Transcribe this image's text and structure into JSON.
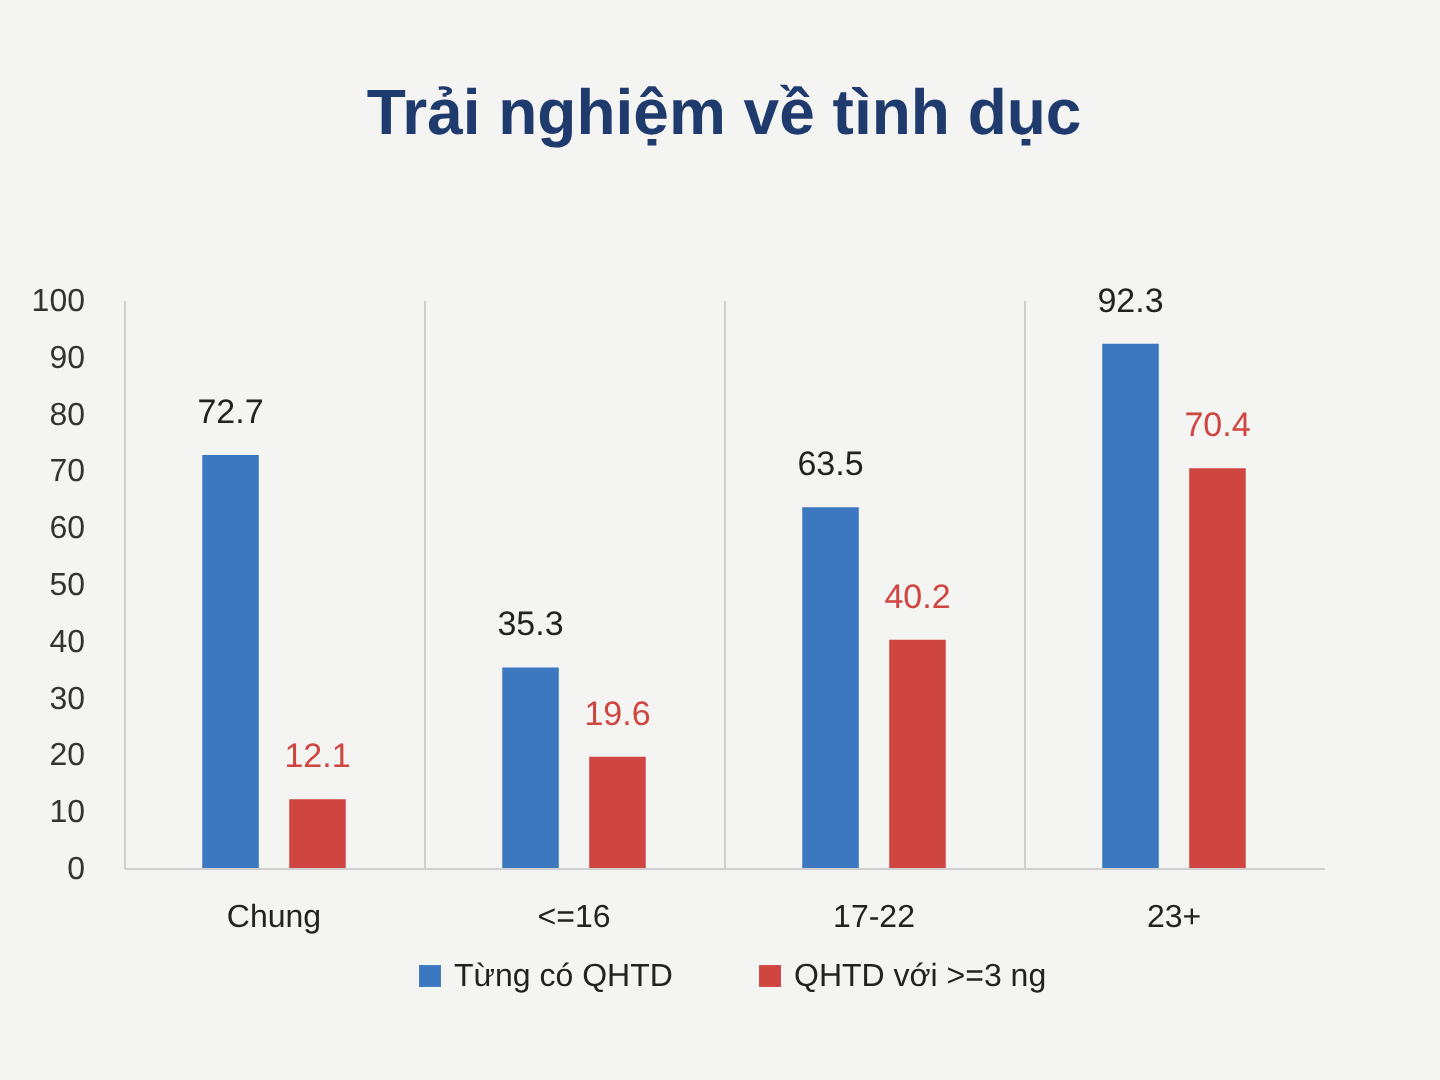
{
  "chart_data": {
    "type": "bar",
    "title": "Trải nghiệm về tình dục",
    "categories": [
      "Chung",
      "<=16",
      "17-22",
      "23+"
    ],
    "series": [
      {
        "name": "Từng có QHTD",
        "color": "#3b78c0",
        "values": [
          72.7,
          35.3,
          63.5,
          92.3
        ]
      },
      {
        "name": "QHTD với >=3 ng",
        "color": "#cf4540",
        "values": [
          12.1,
          19.6,
          40.2,
          70.4
        ]
      }
    ],
    "ylim": [
      0,
      100
    ],
    "yticks": [
      0,
      10,
      20,
      30,
      40,
      50,
      60,
      70,
      80,
      90,
      100
    ],
    "grid": "x",
    "legend": "bottom",
    "data_labels": true
  }
}
